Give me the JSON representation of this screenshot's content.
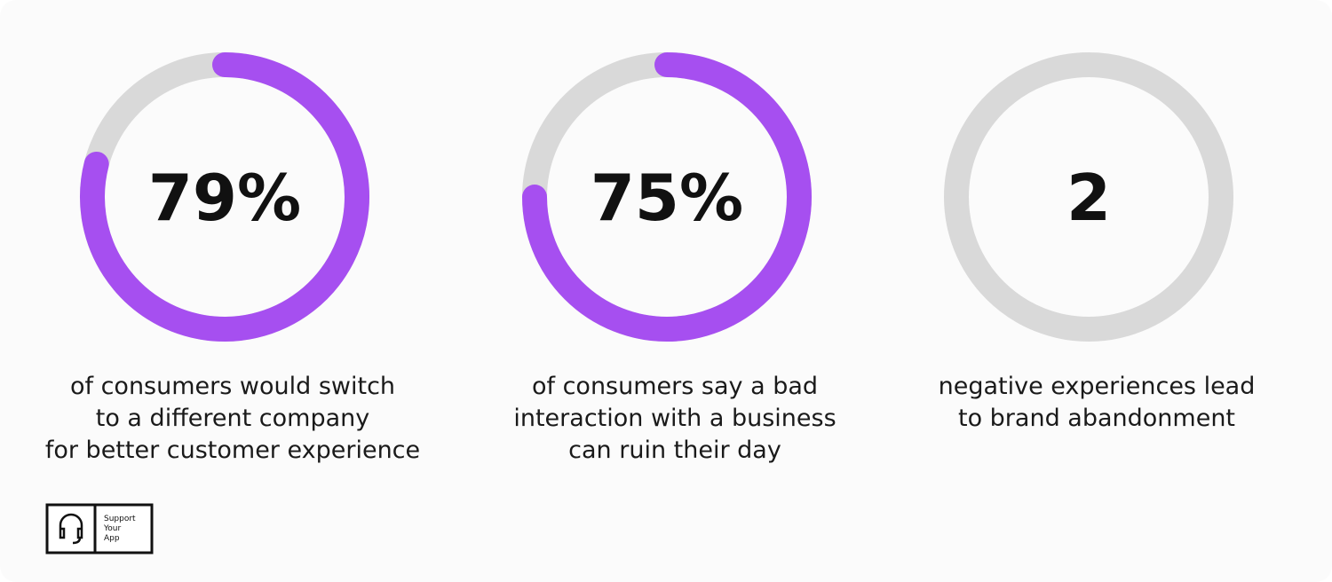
{
  "chart_data": [
    {
      "type": "donut",
      "value": 79,
      "value_label": "79%",
      "color": "#a64ff0",
      "track_color": "#d9d9d9",
      "description": [
        "of consumers would switch",
        "to a different company",
        "for better customer experience"
      ]
    },
    {
      "type": "donut",
      "value": 75,
      "value_label": "75%",
      "color": "#a64ff0",
      "track_color": "#d9d9d9",
      "description": [
        "of consumers say a bad",
        "interaction with a business",
        "can ruin their day"
      ]
    },
    {
      "type": "count",
      "value": 2,
      "track_color": "#d9d9d9",
      "description": [
        "negative experiences lead",
        "to brand abandonment"
      ]
    }
  ],
  "logo": {
    "lines": [
      "Support",
      "Your",
      "App"
    ]
  }
}
